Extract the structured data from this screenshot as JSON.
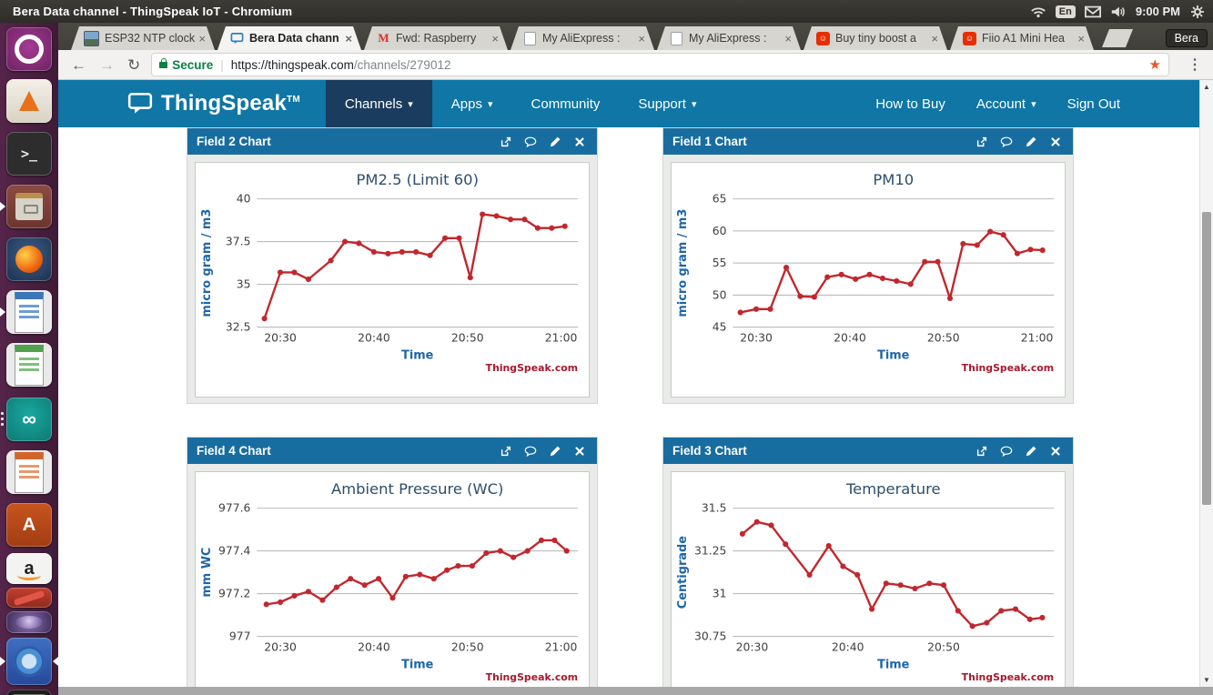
{
  "titlebar": {
    "title": "Bera Data channel - ThingSpeak IoT - Chromium",
    "keyboard_indicator": "En",
    "clock": "9:00 PM"
  },
  "launcher": {
    "items": [
      "ubuntu-dash",
      "vlc",
      "terminal",
      "file-manager",
      "firefox",
      "libreoffice-writer",
      "libreoffice-calc",
      "arduino-ide",
      "libreoffice-impress",
      "ubuntu-software",
      "amazon",
      "marker",
      "fisheye",
      "chromium",
      "keyboard"
    ]
  },
  "browser": {
    "tabs": [
      {
        "label": "ESP32 NTP clock",
        "icon": "photo-thumbnail",
        "active": false
      },
      {
        "label": "Bera Data chann",
        "icon": "thingspeak-bubble",
        "active": true
      },
      {
        "label": "Fwd: Raspberry",
        "icon": "gmail",
        "active": false
      },
      {
        "label": "My AliExpress : ",
        "icon": "page",
        "active": false
      },
      {
        "label": "My AliExpress : ",
        "icon": "page",
        "active": false
      },
      {
        "label": "Buy tiny boost a",
        "icon": "aliexpress-bag",
        "active": false
      },
      {
        "label": "Fiio A1 Mini Hea",
        "icon": "aliexpress-bag",
        "active": false
      }
    ],
    "profile": "Bera",
    "url": {
      "secure_label": "Secure",
      "host": "https://thingspeak.com",
      "path": "/channels/279012"
    }
  },
  "nav": {
    "brand": "ThingSpeak",
    "tm": "TM",
    "items": [
      {
        "label": "Channels",
        "caret": true,
        "active": true
      },
      {
        "label": "Apps",
        "caret": true,
        "active": false
      },
      {
        "label": "Community",
        "caret": false,
        "active": false
      },
      {
        "label": "Support",
        "caret": true,
        "active": false
      }
    ],
    "right_items": [
      {
        "label": "How to Buy"
      },
      {
        "label": "Account",
        "caret": true
      },
      {
        "label": "Sign Out"
      }
    ]
  },
  "panels": [
    {
      "title": "Field 2 Chart"
    },
    {
      "title": "Field 1 Chart"
    },
    {
      "title": "Field 4 Chart"
    },
    {
      "title": "Field 3 Chart"
    }
  ],
  "watermark": "ThingSpeak.com",
  "colors": {
    "nav_blue": "#0f76a5",
    "panel_header_blue": "#186da0",
    "chart_line_red": "#c1272d",
    "watermark_red": "#a6192e",
    "secure_green": "#0b8043",
    "launcher_purple": "#55244a"
  },
  "chart_data": [
    {
      "type": "line",
      "title": "PM2.5 (Limit 60)",
      "xlabel": "Time",
      "ylabel": "micro gram / m3",
      "x_note": "minutes after 20:00",
      "xlim": [
        27.5,
        61.8
      ],
      "ylim": [
        32.5,
        40
      ],
      "yticks": [
        {
          "v": 32.5,
          "label": "32.5"
        },
        {
          "v": 35,
          "label": "35"
        },
        {
          "v": 37.5,
          "label": "37.5"
        },
        {
          "v": 40,
          "label": "40"
        }
      ],
      "xticks": [
        {
          "v": 30,
          "label": "20:30"
        },
        {
          "v": 40,
          "label": "20:40"
        },
        {
          "v": 50,
          "label": "20:50"
        },
        {
          "v": 60,
          "label": "21:00"
        }
      ],
      "x": [
        28.3,
        30,
        31.5,
        33,
        35.4,
        36.9,
        38.4,
        40,
        41.5,
        43,
        44.5,
        46,
        47.6,
        49.1,
        50.3,
        51.6,
        53.1,
        54.6,
        56.1,
        57.5,
        59,
        60.4
      ],
      "values": [
        33.0,
        35.7,
        35.7,
        35.3,
        36.4,
        37.5,
        37.4,
        36.9,
        36.8,
        36.9,
        36.9,
        36.7,
        37.7,
        37.7,
        35.4,
        39.1,
        39.0,
        38.8,
        38.8,
        38.3,
        38.3,
        38.4
      ],
      "line_color": "#c1272d",
      "grid": true,
      "legend": "none"
    },
    {
      "type": "line",
      "title": "PM10",
      "xlabel": "Time",
      "ylabel": "micro gram / m3",
      "x_note": "minutes after 20:00",
      "xlim": [
        27.5,
        61.8
      ],
      "ylim": [
        45,
        65
      ],
      "yticks": [
        {
          "v": 45,
          "label": "45"
        },
        {
          "v": 50,
          "label": "50"
        },
        {
          "v": 55,
          "label": "55"
        },
        {
          "v": 60,
          "label": "60"
        },
        {
          "v": 65,
          "label": "65"
        }
      ],
      "xticks": [
        {
          "v": 30,
          "label": "20:30"
        },
        {
          "v": 40,
          "label": "20:40"
        },
        {
          "v": 50,
          "label": "20:50"
        },
        {
          "v": 60,
          "label": "21:00"
        }
      ],
      "x": [
        28.3,
        30,
        31.5,
        33.2,
        34.7,
        36.2,
        37.6,
        39.1,
        40.6,
        42.1,
        43.5,
        45,
        46.5,
        48,
        49.4,
        50.7,
        52.1,
        53.6,
        55,
        56.4,
        57.9,
        59.3,
        60.6
      ],
      "values": [
        47.3,
        47.8,
        47.8,
        54.3,
        49.8,
        49.7,
        52.8,
        53.2,
        52.5,
        53.2,
        52.6,
        52.2,
        51.7,
        55.2,
        55.2,
        49.5,
        58.0,
        57.8,
        59.9,
        59.4,
        56.5,
        57.1,
        57.0
      ],
      "line_color": "#c1272d",
      "grid": true,
      "legend": "none"
    },
    {
      "type": "line",
      "title": "Ambient Pressure (WC)",
      "xlabel": "Time",
      "ylabel": "mm WC",
      "x_note": "minutes after 20:00",
      "xlim": [
        27.5,
        61.8
      ],
      "ylim": [
        977,
        977.6
      ],
      "yticks": [
        {
          "v": 977,
          "label": "977"
        },
        {
          "v": 977.2,
          "label": "977.2"
        },
        {
          "v": 977.4,
          "label": "977.4"
        },
        {
          "v": 977.6,
          "label": "977.6"
        }
      ],
      "xticks": [
        {
          "v": 30,
          "label": "20:30"
        },
        {
          "v": 40,
          "label": "20:40"
        },
        {
          "v": 50,
          "label": "20:50"
        },
        {
          "v": 60,
          "label": "21:00"
        }
      ],
      "x": [
        28.5,
        30,
        31.5,
        33,
        34.5,
        36,
        37.5,
        39,
        40.5,
        42,
        43.4,
        44.9,
        46.4,
        47.8,
        49,
        50.5,
        52,
        53.5,
        54.9,
        56.4,
        57.9,
        59.3,
        60.6
      ],
      "values": [
        977.15,
        977.16,
        977.19,
        977.21,
        977.17,
        977.23,
        977.27,
        977.24,
        977.27,
        977.18,
        977.28,
        977.29,
        977.27,
        977.31,
        977.33,
        977.33,
        977.39,
        977.4,
        977.37,
        977.4,
        977.45,
        977.45,
        977.4
      ],
      "line_color": "#c1272d",
      "grid": true,
      "legend": "none"
    },
    {
      "type": "line",
      "title": "Temperature",
      "xlabel": "Time",
      "ylabel": "Centigrade",
      "x_note": "minutes after 20:00",
      "xlim": [
        28,
        61.5
      ],
      "ylim": [
        30.75,
        31.5
      ],
      "yticks": [
        {
          "v": 30.75,
          "label": "30.75"
        },
        {
          "v": 31,
          "label": "31"
        },
        {
          "v": 31.25,
          "label": "31.25"
        },
        {
          "v": 31.5,
          "label": "31.5"
        }
      ],
      "xticks": [
        {
          "v": 30,
          "label": "20:30"
        },
        {
          "v": 40,
          "label": "20:40"
        },
        {
          "v": 50,
          "label": "20:50"
        }
      ],
      "x": [
        29,
        30.5,
        32,
        33.5,
        36,
        38,
        39.5,
        41,
        42.5,
        44,
        45.5,
        47,
        48.5,
        50,
        51.5,
        53,
        54.5,
        56,
        57.5,
        59,
        60.3
      ],
      "values": [
        31.35,
        31.42,
        31.4,
        31.29,
        31.11,
        31.28,
        31.16,
        31.11,
        30.91,
        31.06,
        31.05,
        31.03,
        31.06,
        31.05,
        30.9,
        30.81,
        30.83,
        30.9,
        30.91,
        30.85,
        30.86
      ],
      "line_color": "#c1272d",
      "grid": true,
      "legend": "none"
    }
  ]
}
